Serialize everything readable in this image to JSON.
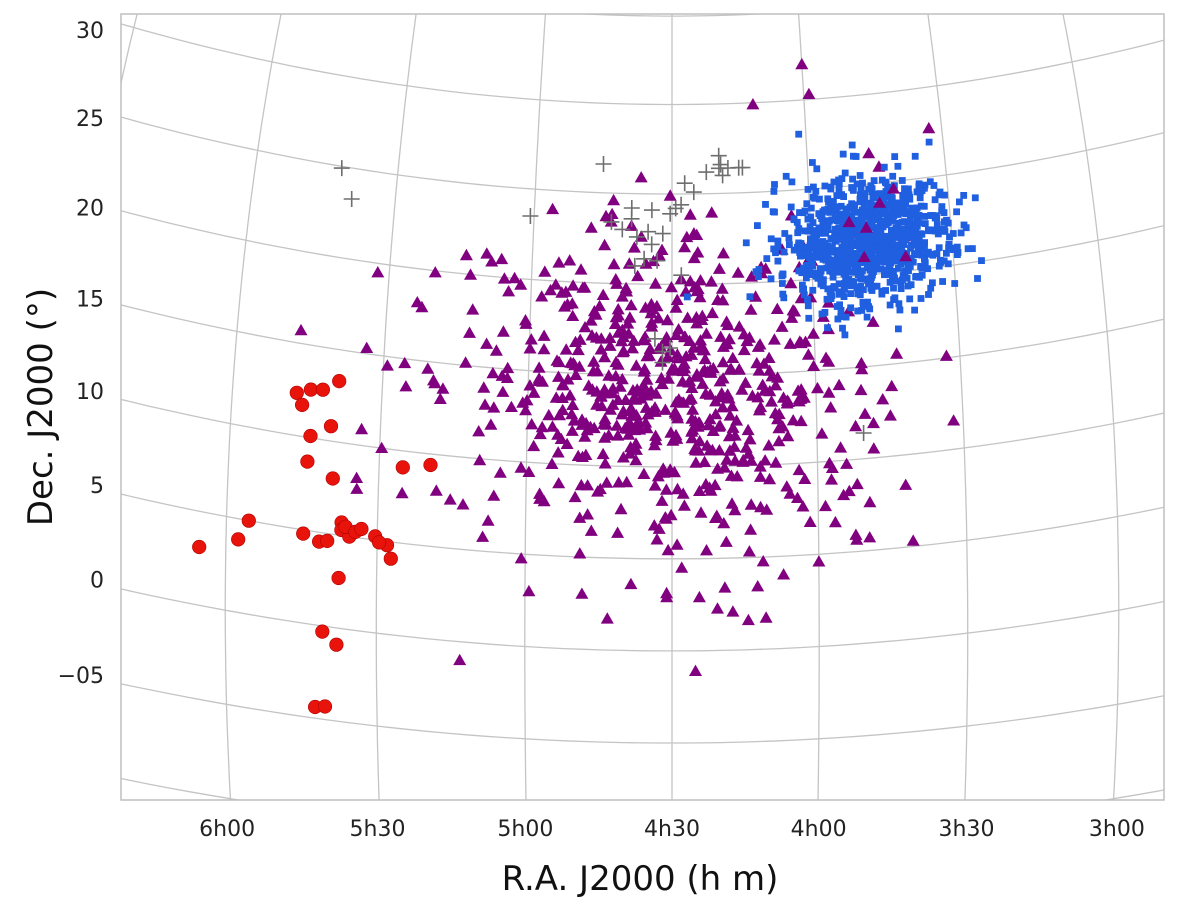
{
  "chart_data": {
    "type": "scatter",
    "projection": "sky (curved R.A./Dec. graticule)",
    "xlabel": "R.A. J2000 (h m)",
    "ylabel": "Dec. J2000 (°)",
    "x_tick_labels": [
      "6h00",
      "5h30",
      "5h00",
      "4h30",
      "4h00",
      "3h30",
      "3h00"
    ],
    "x_ticks_deg": [
      90,
      82.5,
      75,
      67.5,
      60,
      52.5,
      45
    ],
    "y_tick_labels": [
      "30",
      "25",
      "20",
      "15",
      "10",
      "5",
      "0",
      "−05"
    ],
    "y_ticks_deg": [
      30,
      25,
      20,
      15,
      10,
      5,
      0,
      -5
    ],
    "xlim_deg": [
      97,
      44
    ],
    "ylim_deg": [
      -6,
      33
    ],
    "grid": true,
    "legend": "none",
    "colors": {
      "red_circles": "#e8140c",
      "purple_triangles": "#800080",
      "blue_squares": "#1f5fe0",
      "gray_crosses": "#6e6e6e",
      "grid": "#c4c4c4",
      "frame": "#bfbfbf"
    },
    "series": [
      {
        "marker": "circle",
        "color": "#e8140c",
        "points": [
          [
            91.3,
            3.1
          ],
          [
            89.4,
            3.9
          ],
          [
            88.9,
            5.0
          ],
          [
            86.8,
            12.3
          ],
          [
            86.5,
            11.7
          ],
          [
            86.1,
            12.6
          ],
          [
            85.5,
            12.7
          ],
          [
            86.0,
            10.1
          ],
          [
            86.1,
            8.7
          ],
          [
            86.2,
            4.8
          ],
          [
            85.4,
            4.5
          ],
          [
            85.0,
            4.6
          ],
          [
            85.0,
            10.8
          ],
          [
            84.7,
            13.3
          ],
          [
            84.8,
            8.0
          ],
          [
            84.3,
            5.7
          ],
          [
            84.3,
            5.3
          ],
          [
            83.9,
            5.0
          ],
          [
            84.1,
            5.5
          ],
          [
            83.6,
            5.3
          ],
          [
            83.3,
            5.5
          ],
          [
            82.6,
            5.2
          ],
          [
            82.0,
            4.8
          ],
          [
            81.8,
            4.1
          ],
          [
            82.4,
            4.9
          ],
          [
            84.4,
            2.7
          ],
          [
            85.2,
            -0.3
          ],
          [
            84.5,
            -0.9
          ],
          [
            85.6,
            -4.4
          ],
          [
            85.1,
            -4.3
          ],
          [
            81.3,
            9.1
          ],
          [
            79.9,
            9.4
          ]
        ]
      },
      {
        "marker": "triangle",
        "color": "#800080",
        "cluster": {
          "center": [
            68,
            14
          ],
          "sd": [
            5.0,
            4.2
          ],
          "count": 600,
          "seed": 7
        },
        "extra_points": [
          [
            86.8,
            15.7
          ],
          [
            82.3,
            14.5
          ],
          [
            81.3,
            13.5
          ],
          [
            83.1,
            19.5
          ],
          [
            80.1,
            19.9
          ],
          [
            81.3,
            7.7
          ],
          [
            82.4,
            10.0
          ],
          [
            79.9,
            14.0
          ],
          [
            79.4,
            13.6
          ],
          [
            78.3,
            -1.0
          ],
          [
            66.3,
            -1.1
          ],
          [
            62.7,
            1.7
          ],
          [
            63.6,
            1.6
          ],
          [
            61.8,
            4.0
          ],
          [
            60.0,
            4.6
          ],
          [
            58.1,
            5.9
          ],
          [
            57.4,
            5.7
          ],
          [
            55.2,
            5.3
          ],
          [
            58.4,
            8.3
          ],
          [
            57.1,
            10.5
          ],
          [
            56.2,
            12.2
          ],
          [
            53.2,
            15.1
          ],
          [
            62.9,
            29.9
          ],
          [
            59.7,
            30.3
          ],
          [
            60.0,
            32.0
          ],
          [
            61.0,
            23.6
          ],
          [
            56.1,
            25.9
          ],
          [
            53.2,
            27.7
          ],
          [
            57.6,
            22.4
          ],
          [
            55.0,
            21.9
          ],
          [
            56.6,
            20.4
          ],
          [
            55.8,
            21.2
          ],
          [
            59.5,
            17.9
          ],
          [
            57.6,
            15.2
          ],
          [
            56.9,
            17.4
          ],
          [
            59.3,
            9.0
          ],
          [
            58.8,
            10.7
          ],
          [
            58.0,
            11.8
          ],
          [
            61.5,
            11.5
          ],
          [
            61.0,
            18.3
          ],
          [
            62.7,
            20.5
          ],
          [
            62.4,
            14.0
          ],
          [
            74.8,
            3.0
          ],
          [
            72.1,
            3.0
          ],
          [
            69.6,
            3.6
          ],
          [
            66.1,
            2.9
          ],
          [
            64.8,
            3.4
          ],
          [
            70.8,
            1.7
          ],
          [
            67.6,
            24.9
          ],
          [
            69.2,
            25.9
          ],
          [
            73.7,
            19.8
          ],
          [
            75.9,
            20.0
          ],
          [
            66.7,
            22.6
          ],
          [
            71.1,
            23.7
          ],
          [
            69.7,
            23.2
          ]
        ]
      },
      {
        "marker": "square",
        "color": "#1f5fe0",
        "cluster": {
          "center": [
            57.0,
            22.0
          ],
          "sd": [
            2.1,
            1.7
          ],
          "count": 900,
          "seed": 11
        },
        "extra_points": [
          [
            52.0,
            21.7
          ],
          [
            53.0,
            20.3
          ],
          [
            54.6,
            24.5
          ],
          [
            52.7,
            23.9
          ],
          [
            57.3,
            26.6
          ],
          [
            58.0,
            26.8
          ],
          [
            59.5,
            26.1
          ],
          [
            61.2,
            25.8
          ],
          [
            60.4,
            28.1
          ],
          [
            61.6,
            19.3
          ],
          [
            63.0,
            20.6
          ],
          [
            62.4,
            21.3
          ],
          [
            58.3,
            17.8
          ],
          [
            59.3,
            17.3
          ],
          [
            57.2,
            17.7
          ],
          [
            55.7,
            18.6
          ],
          [
            53.8,
            18.9
          ],
          [
            55.0,
            19.6
          ]
        ]
      },
      {
        "marker": "plus",
        "color": "#6e6e6e",
        "points": [
          [
            85.5,
            24.9
          ],
          [
            84.8,
            23.3
          ],
          [
            71.3,
            26.6
          ],
          [
            75.2,
            23.5
          ],
          [
            69.7,
            24.2
          ],
          [
            70.8,
            23.4
          ],
          [
            69.7,
            23.6
          ],
          [
            70.2,
            23.0
          ],
          [
            69.4,
            22.6
          ],
          [
            68.8,
            22.9
          ],
          [
            68.6,
            22.2
          ],
          [
            69.0,
            21.4
          ],
          [
            69.5,
            21.0
          ],
          [
            68.3,
            21.3
          ],
          [
            68.0,
            22.8
          ],
          [
            68.6,
            24.1
          ],
          [
            67.6,
            23.9
          ],
          [
            67.3,
            24.2
          ],
          [
            67.0,
            24.4
          ],
          [
            66.3,
            25.1
          ],
          [
            66.8,
            25.6
          ],
          [
            65.6,
            26.2
          ],
          [
            64.9,
            26.4
          ],
          [
            64.8,
            26.6
          ],
          [
            64.7,
            26.0
          ],
          [
            64.4,
            26.4
          ],
          [
            64.9,
            27.1
          ],
          [
            63.8,
            26.4
          ],
          [
            63.6,
            26.4
          ],
          [
            68.4,
            17.0
          ],
          [
            67.6,
            16.5
          ],
          [
            68.0,
            15.7
          ],
          [
            68.0,
            16.3
          ],
          [
            57.6,
            11.4
          ],
          [
            67.0,
            20.5
          ]
        ]
      }
    ]
  }
}
